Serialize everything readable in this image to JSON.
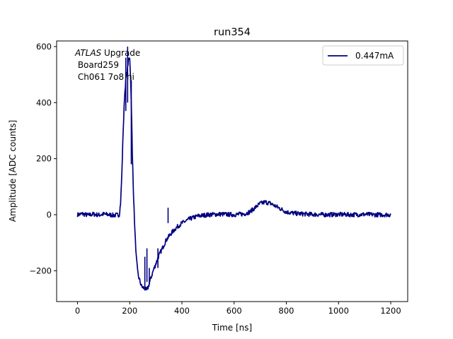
{
  "chart_data": {
    "type": "line",
    "title": "run354",
    "xlabel": "Time [ns]",
    "ylabel": "Amplitude [ADC counts]",
    "xlim": [
      -80,
      1265
    ],
    "ylim": [
      -310,
      620
    ],
    "x_ticks": [
      0,
      200,
      400,
      600,
      800,
      1000,
      1200
    ],
    "y_ticks": [
      -200,
      0,
      200,
      400,
      600
    ],
    "x_tick_labels": [
      "0",
      "200",
      "400",
      "600",
      "800",
      "1000",
      "1200"
    ],
    "y_tick_labels": [
      "−200",
      "0",
      "200",
      "400",
      "600"
    ],
    "grid": false,
    "legend_position": "top-right",
    "annotation": {
      "line1_italic": "ATLAS",
      "line1_rest": " Upgrade",
      "line2": " Board259",
      "line3": " Ch061 7o8 hi"
    },
    "series": [
      {
        "name": "0.447mA",
        "color": "#00007f",
        "x": [
          0,
          20,
          40,
          60,
          80,
          100,
          120,
          140,
          160,
          165,
          170,
          175,
          180,
          185,
          190,
          195,
          200,
          203,
          206,
          210,
          215,
          220,
          225,
          230,
          235,
          240,
          245,
          250,
          255,
          260,
          265,
          270,
          275,
          280,
          290,
          300,
          310,
          320,
          340,
          360,
          380,
          400,
          430,
          460,
          500,
          550,
          600,
          640,
          660,
          680,
          700,
          720,
          740,
          760,
          780,
          800,
          830,
          860,
          900,
          950,
          1000,
          1050,
          1100,
          1150,
          1200
        ],
        "y": [
          0,
          3,
          -2,
          2,
          -1,
          2,
          0,
          -2,
          0,
          40,
          150,
          300,
          420,
          480,
          510,
          550,
          560,
          500,
          400,
          220,
          60,
          -60,
          -150,
          -200,
          -225,
          -240,
          -255,
          -260,
          -262,
          -265,
          -270,
          -260,
          -245,
          -230,
          -200,
          -175,
          -150,
          -130,
          -90,
          -65,
          -45,
          -30,
          -15,
          -5,
          0,
          2,
          0,
          3,
          10,
          25,
          40,
          45,
          40,
          30,
          20,
          10,
          5,
          3,
          1,
          0,
          1,
          0,
          1,
          0,
          0
        ]
      }
    ]
  }
}
